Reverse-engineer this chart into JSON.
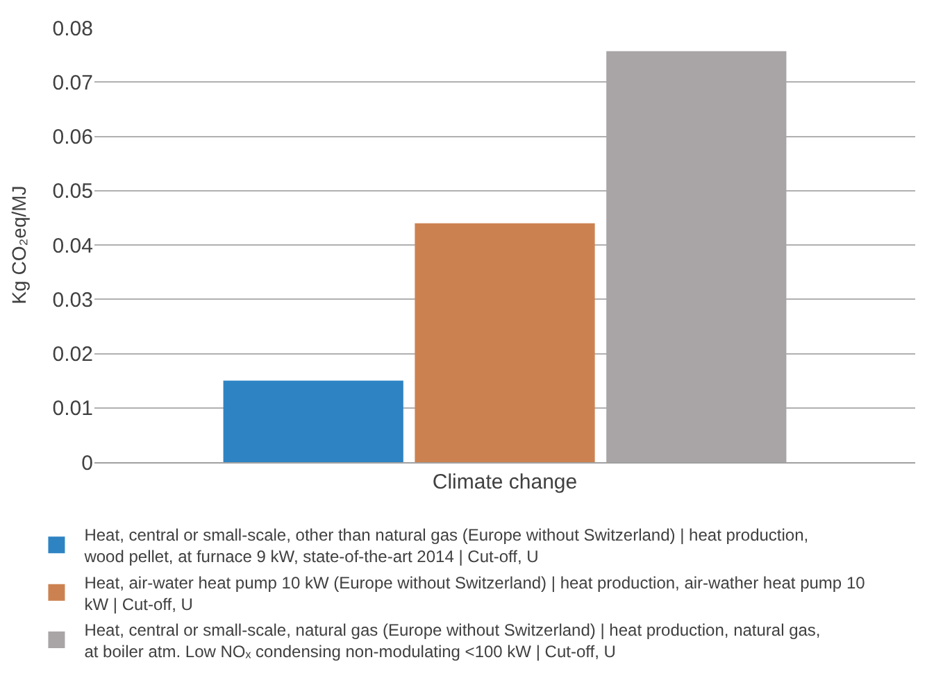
{
  "chart_data": {
    "type": "bar",
    "ylabel": "Kg CO₂eq/MJ",
    "categories": [
      "Climate change"
    ],
    "series": [
      {
        "name": "Heat, central or small-scale, other than natural gas (Europe without Switzerland) | heat production, wood pellet, at furnace 9 kW, state-of-the-art 2014 | Cut-off, U",
        "color": "#2e83c3",
        "values": [
          0.015
        ]
      },
      {
        "name": "Heat, air-water heat pump 10 kW (Europe without Switzerland) | heat production, air-wather heat pump 10 kW | Cut-off, U",
        "color": "#cc8250",
        "values": [
          0.044
        ]
      },
      {
        "name": "Heat, central or small-scale, natural gas (Europe without Switzerland) | heat production, natural gas, at boiler atm. Low NOₓ condensing non-modulating <100 kW | Cut-off, U",
        "color": "#a9a5a6",
        "values": [
          0.0757
        ]
      }
    ],
    "ylim": [
      0,
      0.08
    ],
    "yticks": [
      0,
      0.01,
      0.02,
      0.03,
      0.04,
      0.05,
      0.06,
      0.07,
      0.08
    ],
    "grid": "y",
    "legend": "bottom"
  }
}
